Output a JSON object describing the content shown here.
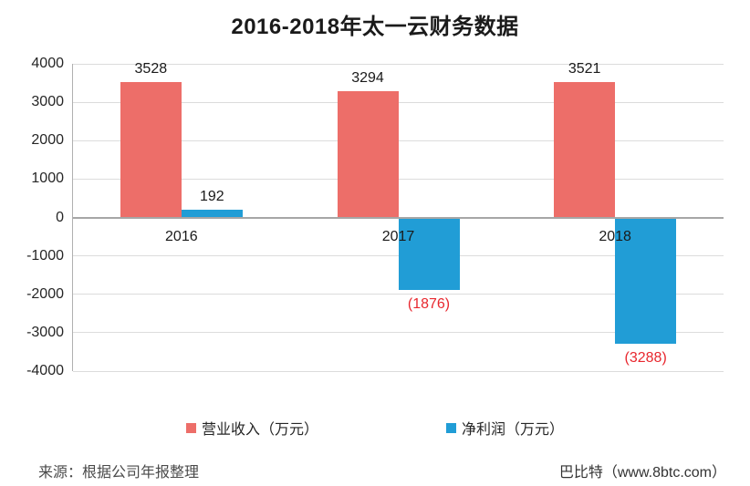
{
  "title": "2016-2018年太一云财务数据",
  "footer": {
    "source": "来源：根据公司年报整理",
    "credit": "巴比特（www.8btc.com）"
  },
  "chart_data": {
    "type": "bar",
    "title": "2016-2018年太一云财务数据",
    "categories": [
      "2016",
      "2017",
      "2018"
    ],
    "series": [
      {
        "key": "revenue",
        "name": "营业收入（万元）",
        "color": "#ed6e69",
        "values": [
          3528,
          3294,
          3521
        ],
        "labels": [
          "3528",
          "3294",
          "3521"
        ]
      },
      {
        "key": "net-profit",
        "name": "净利润（万元）",
        "color": "#219dd6",
        "values": [
          192,
          -1876,
          -3288
        ],
        "labels": [
          "192",
          "(1876)",
          "(3288)"
        ]
      }
    ],
    "ylim": [
      -4000,
      4000
    ],
    "ytick_step": 1000,
    "grid": true,
    "legend_position": "bottom",
    "negative_label_color": "#e8272e",
    "value_label_color": "#1a1a1a"
  }
}
